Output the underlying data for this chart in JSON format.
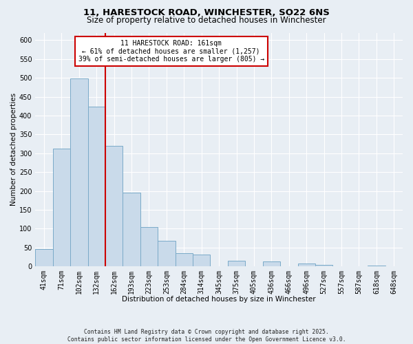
{
  "title": "11, HARESTOCK ROAD, WINCHESTER, SO22 6NS",
  "subtitle": "Size of property relative to detached houses in Winchester",
  "xlabel": "Distribution of detached houses by size in Winchester",
  "ylabel": "Number of detached properties",
  "bar_labels": [
    "41sqm",
    "71sqm",
    "102sqm",
    "132sqm",
    "162sqm",
    "193sqm",
    "223sqm",
    "253sqm",
    "284sqm",
    "314sqm",
    "345sqm",
    "375sqm",
    "405sqm",
    "436sqm",
    "466sqm",
    "496sqm",
    "527sqm",
    "557sqm",
    "587sqm",
    "618sqm",
    "648sqm"
  ],
  "bar_values": [
    46,
    313,
    498,
    423,
    320,
    195,
    105,
    68,
    35,
    32,
    0,
    14,
    0,
    13,
    0,
    8,
    3,
    0,
    0,
    2,
    1
  ],
  "bar_color": "#c9daea",
  "bar_edge_color": "#7aaac8",
  "vline_color": "#cc0000",
  "annotation_title": "11 HARESTOCK ROAD: 161sqm",
  "annotation_line1": "← 61% of detached houses are smaller (1,257)",
  "annotation_line2": "39% of semi-detached houses are larger (805) →",
  "annotation_box_color": "#ffffff",
  "annotation_box_edge": "#cc0000",
  "ylim": [
    0,
    620
  ],
  "yticks": [
    0,
    50,
    100,
    150,
    200,
    250,
    300,
    350,
    400,
    450,
    500,
    550,
    600
  ],
  "footnote1": "Contains HM Land Registry data © Crown copyright and database right 2025.",
  "footnote2": "Contains public sector information licensed under the Open Government Licence v3.0.",
  "bg_color": "#e8eef4",
  "plot_bg_color": "#e8eef4",
  "title_fontsize": 9.5,
  "axis_fontsize": 7.5,
  "tick_fontsize": 7
}
